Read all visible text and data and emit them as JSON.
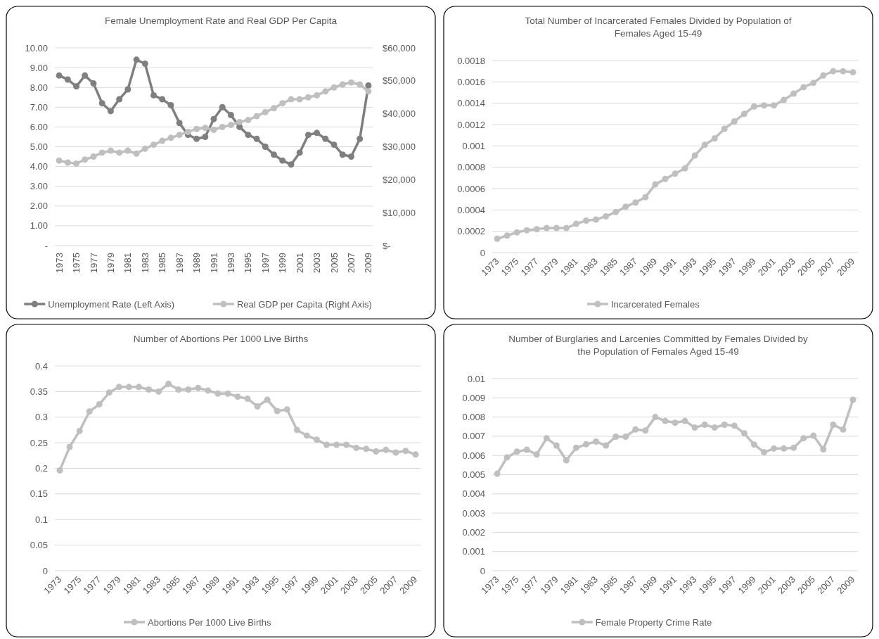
{
  "chart_data": [
    {
      "type": "line",
      "title": "Female Unemployment Rate and Real GDP Per Capita",
      "categories": [
        "1973",
        null,
        "1975",
        null,
        "1977",
        null,
        "1979",
        null,
        "1981",
        null,
        "1983",
        null,
        "1985",
        null,
        "1987",
        null,
        "1989",
        null,
        "1991",
        null,
        "1993",
        null,
        "1995",
        null,
        "1997",
        null,
        "1999",
        null,
        "2001",
        null,
        "2003",
        null,
        "2005",
        null,
        "2007",
        null,
        "2009"
      ],
      "series": [
        {
          "name": "Unemployment Rate (Left Axis)",
          "color": "#7f7f7f",
          "values": [
            8.6,
            8.4,
            8.05,
            8.6,
            8.2,
            7.2,
            6.8,
            7.4,
            7.9,
            9.4,
            9.2,
            7.6,
            7.4,
            7.1,
            6.2,
            5.6,
            5.4,
            5.5,
            6.4,
            7.0,
            6.6,
            6.0,
            5.6,
            5.4,
            5.0,
            4.6,
            4.3,
            4.1,
            4.7,
            5.6,
            5.7,
            5.4,
            5.1,
            4.6,
            4.5,
            5.4,
            8.1
          ]
        },
        {
          "name": "Real GDP per Capita (Right Axis)",
          "color": "#bfbfbf",
          "axis": "y2",
          "values": [
            25800,
            25200,
            24900,
            26100,
            27000,
            28200,
            28800,
            28200,
            28800,
            27900,
            29400,
            30600,
            31800,
            32700,
            33600,
            34500,
            35400,
            35700,
            35100,
            36000,
            36600,
            37500,
            38100,
            39300,
            40500,
            41700,
            43200,
            44400,
            44400,
            45000,
            45600,
            46800,
            48000,
            48900,
            49500,
            48900,
            46800
          ]
        }
      ],
      "ylim": [
        0,
        10
      ],
      "yticks": [
        {
          "value": 0,
          "label": "-"
        },
        {
          "value": 1,
          "label": "1.00"
        },
        {
          "value": 2,
          "label": "2.00"
        },
        {
          "value": 3,
          "label": "3.00"
        },
        {
          "value": 4,
          "label": "4.00"
        },
        {
          "value": 5,
          "label": "5.00"
        },
        {
          "value": 6,
          "label": "6.00"
        },
        {
          "value": 7,
          "label": "7.00"
        },
        {
          "value": 8,
          "label": "8.00"
        },
        {
          "value": 9,
          "label": "9.00"
        },
        {
          "value": 10,
          "label": "10.00"
        }
      ],
      "y2lim": [
        0,
        60000
      ],
      "y2ticks": [
        {
          "value": 0,
          "label": "$-"
        },
        {
          "value": 10000,
          "label": "$10,000"
        },
        {
          "value": 20000,
          "label": "$20,000"
        },
        {
          "value": 30000,
          "label": "$30,000"
        },
        {
          "value": 40000,
          "label": "$40,000"
        },
        {
          "value": 50000,
          "label": "$50,000"
        },
        {
          "value": 60000,
          "label": "$60,000"
        }
      ],
      "grid": "y",
      "legend": "bottom",
      "marker": "circle"
    },
    {
      "type": "line",
      "title": "Total Number of Incarcerated Females Divided by Population of Females Aged 15-49",
      "categories": [
        "1973",
        null,
        "1975",
        null,
        "1977",
        null,
        "1979",
        null,
        "1981",
        null,
        "1983",
        null,
        "1985",
        null,
        "1987",
        null,
        "1989",
        null,
        "1991",
        null,
        "1993",
        null,
        "1995",
        null,
        "1997",
        null,
        "1999",
        null,
        "2001",
        null,
        "2003",
        null,
        "2005",
        null,
        "2007",
        null,
        "2009"
      ],
      "series": [
        {
          "name": "Incarcerated Females",
          "color": "#bfbfbf",
          "values": [
            0.00013,
            0.00016,
            0.00019,
            0.00021,
            0.00022,
            0.00023,
            0.00023,
            0.00023,
            0.00027,
            0.0003,
            0.00031,
            0.00034,
            0.00038,
            0.00043,
            0.00047,
            0.00052,
            0.00064,
            0.00069,
            0.00074,
            0.00079,
            0.00091,
            0.00101,
            0.00107,
            0.00116,
            0.00123,
            0.0013,
            0.00137,
            0.00138,
            0.00138,
            0.00143,
            0.00149,
            0.00155,
            0.00159,
            0.00166,
            0.0017,
            0.0017,
            0.00169
          ]
        }
      ],
      "ylim": [
        0,
        0.0018
      ],
      "yticks": [
        0,
        0.0002,
        0.0004,
        0.0006,
        0.0008,
        0.001,
        0.0012,
        0.0014,
        0.0016,
        0.0018
      ],
      "grid": "y",
      "legend": "bottom",
      "marker": "circle"
    },
    {
      "type": "line",
      "title": "Number of Abortions Per 1000 Live Births",
      "categories": [
        "1973",
        null,
        "1975",
        null,
        "1977",
        null,
        "1979",
        null,
        "1981",
        null,
        "1983",
        null,
        "1985",
        null,
        "1987",
        null,
        "1989",
        null,
        "1991",
        null,
        "1993",
        null,
        "1995",
        null,
        "1997",
        null,
        "1999",
        null,
        "2001",
        null,
        "2003",
        null,
        "2005",
        null,
        "2007",
        null,
        "2009"
      ],
      "series": [
        {
          "name": "Abortions Per 1000 Live Births",
          "color": "#bfbfbf",
          "values": [
            0.196,
            0.242,
            0.273,
            0.311,
            0.325,
            0.348,
            0.359,
            0.359,
            0.359,
            0.354,
            0.35,
            0.365,
            0.354,
            0.354,
            0.357,
            0.352,
            0.346,
            0.346,
            0.34,
            0.336,
            0.321,
            0.334,
            0.312,
            0.315,
            0.275,
            0.264,
            0.256,
            0.246,
            0.246,
            0.246,
            0.24,
            0.238,
            0.233,
            0.236,
            0.231,
            0.234,
            0.227
          ]
        }
      ],
      "ylim": [
        0,
        0.4
      ],
      "yticks": [
        0,
        0.05,
        0.1,
        0.15,
        0.2,
        0.25,
        0.3,
        0.35,
        0.4
      ],
      "grid": "y",
      "legend": "bottom",
      "marker": "circle"
    },
    {
      "type": "line",
      "title": "Number of Burglaries and Larcenies Committed by Females Divided by the Population of Females Aged 15-49",
      "categories": [
        "1973",
        null,
        "1975",
        null,
        "1977",
        null,
        "1979",
        null,
        "1981",
        null,
        "1983",
        null,
        "1985",
        null,
        "1987",
        null,
        "1989",
        null,
        "1991",
        null,
        "1993",
        null,
        "1995",
        null,
        "1997",
        null,
        "1999",
        null,
        "2001",
        null,
        "2003",
        null,
        "2005",
        null,
        "2007",
        null,
        "2009"
      ],
      "series": [
        {
          "name": "Female Property Crime Rate",
          "color": "#bfbfbf",
          "values": [
            0.00505,
            0.0059,
            0.0062,
            0.0063,
            0.00605,
            0.0069,
            0.00652,
            0.00575,
            0.0064,
            0.00658,
            0.00672,
            0.00652,
            0.00698,
            0.00698,
            0.00735,
            0.0073,
            0.008,
            0.0078,
            0.0077,
            0.0078,
            0.00745,
            0.0076,
            0.00745,
            0.0076,
            0.00755,
            0.00715,
            0.00657,
            0.00617,
            0.00636,
            0.00636,
            0.0064,
            0.0069,
            0.00703,
            0.00632,
            0.0076,
            0.00735,
            0.0089
          ]
        }
      ],
      "ylim": [
        0,
        0.01
      ],
      "yticks": [
        0,
        0.001,
        0.002,
        0.003,
        0.004,
        0.005,
        0.006,
        0.007,
        0.008,
        0.009,
        0.01
      ],
      "grid": "y",
      "legend": "bottom",
      "marker": "circle"
    }
  ]
}
